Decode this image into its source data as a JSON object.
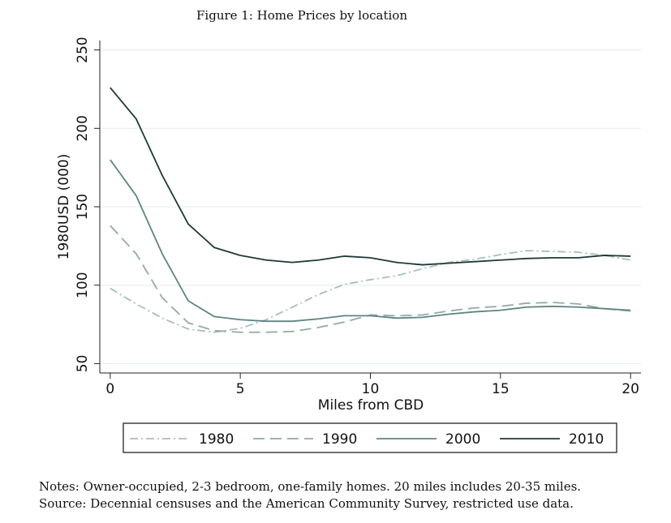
{
  "chart_data": {
    "type": "line",
    "title": "Figure 1: Home Prices by location",
    "x_label": "Miles from CBD",
    "y_label": "1980USD (000)",
    "x": [
      0,
      1,
      2,
      3,
      4,
      5,
      6,
      7,
      8,
      9,
      10,
      11,
      12,
      13,
      14,
      15,
      16,
      17,
      18,
      19,
      20
    ],
    "series": [
      {
        "name": "1980",
        "color": "#a9beb8",
        "style": "dashdot",
        "values": [
          98,
          88,
          79,
          72,
          70,
          72.5,
          78,
          86,
          94,
          100.5,
          103.5,
          106,
          110.5,
          114.5,
          116.5,
          119.5,
          122,
          121.5,
          121,
          119,
          116
        ]
      },
      {
        "name": "1990",
        "color": "#93aaa4",
        "style": "dash",
        "values": [
          138,
          120,
          92,
          76,
          71,
          70,
          70,
          70.5,
          73,
          76.5,
          81,
          80.5,
          81,
          83.5,
          85.5,
          86.5,
          88.5,
          89,
          88,
          85,
          83.5
        ]
      },
      {
        "name": "2000",
        "color": "#5f8580",
        "style": "solid",
        "values": [
          180,
          157,
          120,
          90,
          80,
          78,
          77,
          77,
          78.5,
          80.5,
          80.5,
          79,
          79.5,
          81.5,
          83,
          84,
          86,
          86.5,
          86,
          85,
          84
        ]
      },
      {
        "name": "2010",
        "color": "#1f3a36",
        "style": "solid",
        "values": [
          226,
          206,
          170,
          139,
          124,
          119,
          116,
          114.5,
          116,
          118.5,
          117.5,
          114.5,
          113,
          114,
          115,
          116,
          117,
          117.5,
          117.5,
          119,
          118.5
        ]
      }
    ],
    "xlim": [
      -0.4,
      20.4
    ],
    "xticks": [
      0,
      5,
      10,
      15,
      20
    ],
    "ylim": [
      44,
      256
    ],
    "yticks": [
      50,
      100,
      150,
      200,
      250
    ],
    "grid": true,
    "legend": "bottom",
    "notes": [
      "Notes: Owner-occupied, 2-3 bedroom, one-family homes. 20 miles includes 20-35 miles.",
      "Source: Decennial censuses and the American Community Survey, restricted use data."
    ]
  }
}
